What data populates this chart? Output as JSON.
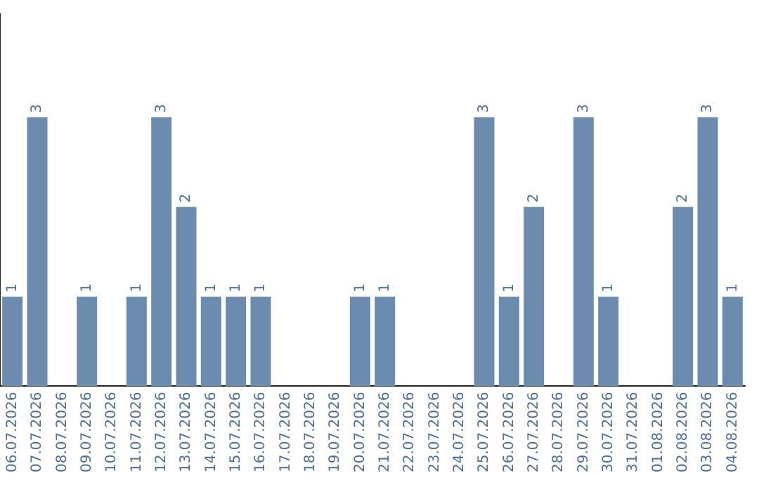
{
  "chart_data": {
    "type": "bar",
    "categories": [
      "06.07.2026",
      "07.07.2026",
      "08.07.2026",
      "09.07.2026",
      "10.07.2026",
      "11.07.2026",
      "12.07.2026",
      "13.07.2026",
      "14.07.2026",
      "15.07.2026",
      "16.07.2026",
      "17.07.2026",
      "18.07.2026",
      "19.07.2026",
      "20.07.2026",
      "21.07.2026",
      "22.07.2026",
      "23.07.2026",
      "24.07.2026",
      "25.07.2026",
      "26.07.2026",
      "27.07.2026",
      "28.07.2026",
      "29.07.2026",
      "30.07.2026",
      "31.07.2026",
      "01.08.2026",
      "02.08.2026",
      "03.08.2026",
      "04.08.2026"
    ],
    "values": [
      1,
      3,
      0,
      1,
      0,
      1,
      3,
      2,
      1,
      1,
      1,
      0,
      0,
      0,
      1,
      1,
      0,
      0,
      0,
      3,
      1,
      2,
      0,
      3,
      1,
      0,
      0,
      2,
      3,
      1
    ],
    "value_labels": [
      "1",
      "3",
      null,
      "1",
      null,
      "1",
      "3",
      "2",
      "1",
      "1",
      "1",
      null,
      null,
      null,
      "1",
      "1",
      null,
      null,
      null,
      "3",
      "1",
      "2",
      null,
      "3",
      "1",
      null,
      null,
      "2",
      "3",
      "1"
    ],
    "color": "#6b8caf",
    "ylim": [
      0,
      4.15
    ],
    "tick_labels": "x",
    "grid": false,
    "legend": false
  }
}
